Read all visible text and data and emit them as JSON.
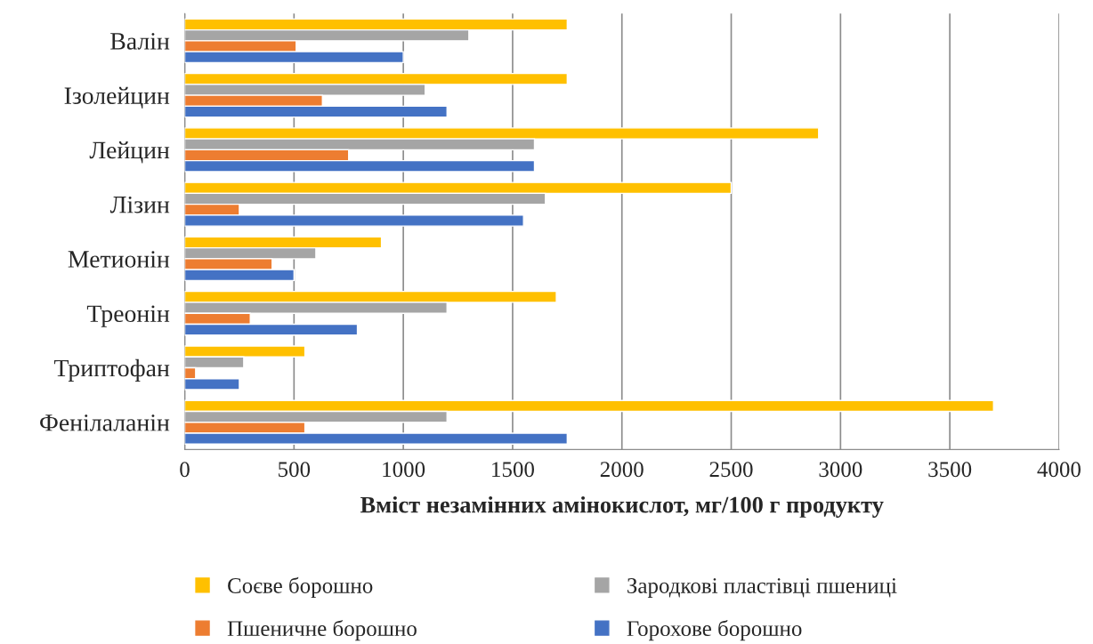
{
  "chart_data": {
    "type": "bar",
    "orientation": "horizontal",
    "xlabel": "Вміст незамінних амінокислот, мг/100 г продукту",
    "categories": [
      "Валін",
      "Ізолейцин",
      "Лейцин",
      "Лізин",
      "Метионін",
      "Треонін",
      "Триптофан",
      "Фенілаланін"
    ],
    "series": [
      {
        "name": "Соєве борошно",
        "color": "#ffc000",
        "values": [
          1750,
          1750,
          2900,
          2500,
          900,
          1700,
          550,
          3700
        ]
      },
      {
        "name": "Зародкові пластівці пшениці",
        "color": "#a5a5a5",
        "values": [
          1300,
          1100,
          1600,
          1650,
          600,
          1200,
          270,
          1200
        ]
      },
      {
        "name": "Пшеничне борошно",
        "color": "#ed7d31",
        "values": [
          510,
          630,
          750,
          250,
          400,
          300,
          50,
          550
        ]
      },
      {
        "name": "Горохове борошно",
        "color": "#4472c4",
        "values": [
          1000,
          1200,
          1600,
          1550,
          500,
          790,
          250,
          1750
        ]
      }
    ],
    "xlim": [
      0,
      4000
    ],
    "xticks": [
      0,
      500,
      1000,
      1500,
      2000,
      2500,
      3000,
      3500,
      4000
    ],
    "grid": "x",
    "legend": "bottom"
  }
}
